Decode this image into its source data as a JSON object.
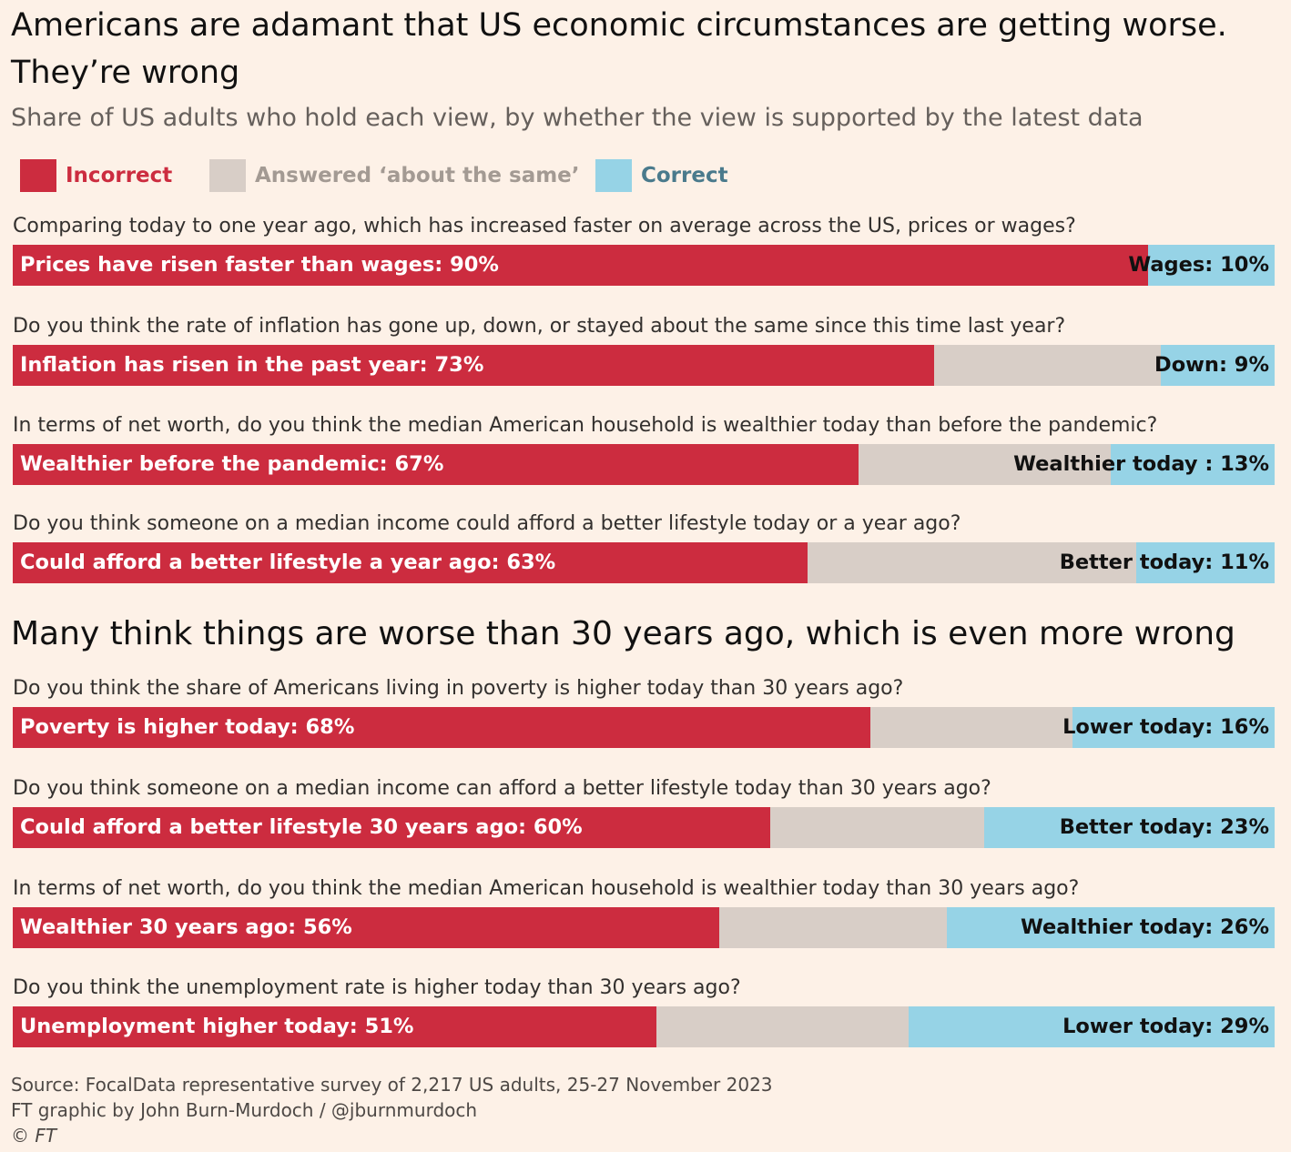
{
  "title": "Americans are adamant that US economic circumstances are getting worse. They’re wrong",
  "subtitle": "Share of US adults who hold each view, by whether the view is supported by the latest data",
  "legend": [
    {
      "label": "Incorrect",
      "color": "#cc2c3f",
      "text_color": "#cc2c3f"
    },
    {
      "label": "Answered ‘about the same’",
      "color": "#d8cec7",
      "text_color": "#a39a93"
    },
    {
      "label": "Correct",
      "color": "#96d3e6",
      "text_color": "#4a7a8c"
    }
  ],
  "section2_title": "Many think things are worse than 30 years ago, which is even more wrong",
  "source": [
    "Source: FocalData representative survey of 2,217 US adults, 25-27 November 2023",
    "FT graphic by John Burn-Murdoch / @jburnmurdoch",
    "© FT"
  ],
  "chart_data": {
    "type": "bar",
    "orientation": "horizontal",
    "stacked": true,
    "unit": "%",
    "series": [
      {
        "name": "Incorrect",
        "color": "#cc2c3f"
      },
      {
        "name": "Answered ‘about the same’",
        "color": "#d8cec7"
      },
      {
        "name": "Correct",
        "color": "#96d3e6"
      }
    ],
    "rows": [
      {
        "question": "Comparing today to one year ago, which has increased faster on average across the US, prices or wages?",
        "incorrect": 90,
        "same": 0,
        "correct": 10,
        "incorrect_label": "Prices have risen faster than wages: 90%",
        "correct_label": "Wages: 10%"
      },
      {
        "question": "Do you think the rate of inflation has gone up, down, or stayed about the same since this time last year?",
        "incorrect": 73,
        "same": 18,
        "correct": 9,
        "incorrect_label": "Inflation has risen in the past year: 73%",
        "correct_label": "Down: 9%"
      },
      {
        "question": "In terms of net worth, do you think the median American household is wealthier today than before the pandemic?",
        "incorrect": 67,
        "same": 20,
        "correct": 13,
        "incorrect_label": "Wealthier before the pandemic: 67%",
        "correct_label": "Wealthier today : 13%"
      },
      {
        "question": "Do you think someone on a median income could afford a better lifestyle today or a year ago?",
        "incorrect": 63,
        "same": 26,
        "correct": 11,
        "incorrect_label": "Could afford a better lifestyle a year ago: 63%",
        "correct_label": "Better today: 11%"
      },
      {
        "question": "Do you think the share of Americans living in poverty is higher today than 30 years ago?",
        "incorrect": 68,
        "same": 16,
        "correct": 16,
        "incorrect_label": "Poverty is higher today: 68%",
        "correct_label": "Lower today: 16%"
      },
      {
        "question": "Do you think someone on a median income can afford a better lifestyle today than 30 years ago?",
        "incorrect": 60,
        "same": 17,
        "correct": 23,
        "incorrect_label": "Could afford a better lifestyle 30 years ago: 60%",
        "correct_label": "Better today: 23%"
      },
      {
        "question": "In terms of net worth, do you think the median American household is wealthier today than 30 years ago?",
        "incorrect": 56,
        "same": 18,
        "correct": 26,
        "incorrect_label": "Wealthier 30 years ago: 56%",
        "correct_label": "Wealthier today: 26%"
      },
      {
        "question": "Do you think the unemployment rate is higher today than 30 years ago?",
        "incorrect": 51,
        "same": 20,
        "correct": 29,
        "incorrect_label": "Unemployment higher today: 51%",
        "correct_label": "Lower today: 29%"
      }
    ]
  }
}
